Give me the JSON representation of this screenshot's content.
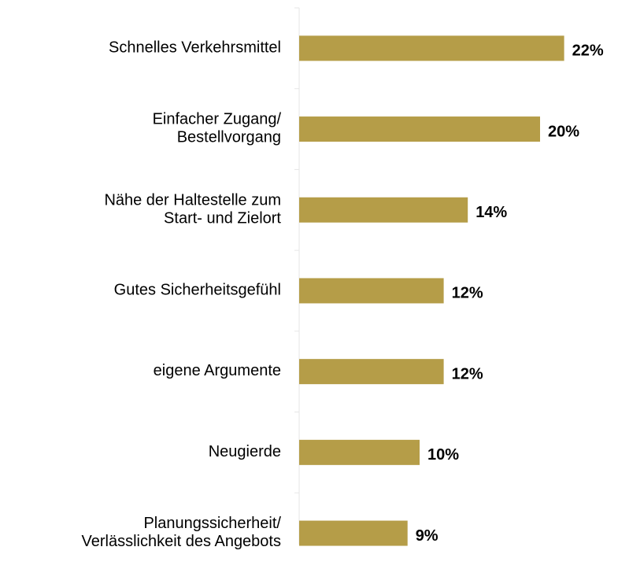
{
  "chart_data": {
    "type": "barh",
    "categories": [
      "Schnelles Verkehrsmittel",
      "Einfacher Zugang/\nBestellvorgang",
      "Nähe der Haltestelle zum\nStart- und Zielort",
      "Gutes Sicherheitsgefühl",
      "eigene Argumente",
      "Neugierde",
      "Planungssicherheit/\nVerlässlichkeit des Angebots"
    ],
    "values": [
      22,
      20,
      14,
      12,
      12,
      10,
      9
    ],
    "value_labels": [
      "22%",
      "20%",
      "14%",
      "12%",
      "12%",
      "10%",
      "9%"
    ],
    "color": "#b59d48"
  }
}
